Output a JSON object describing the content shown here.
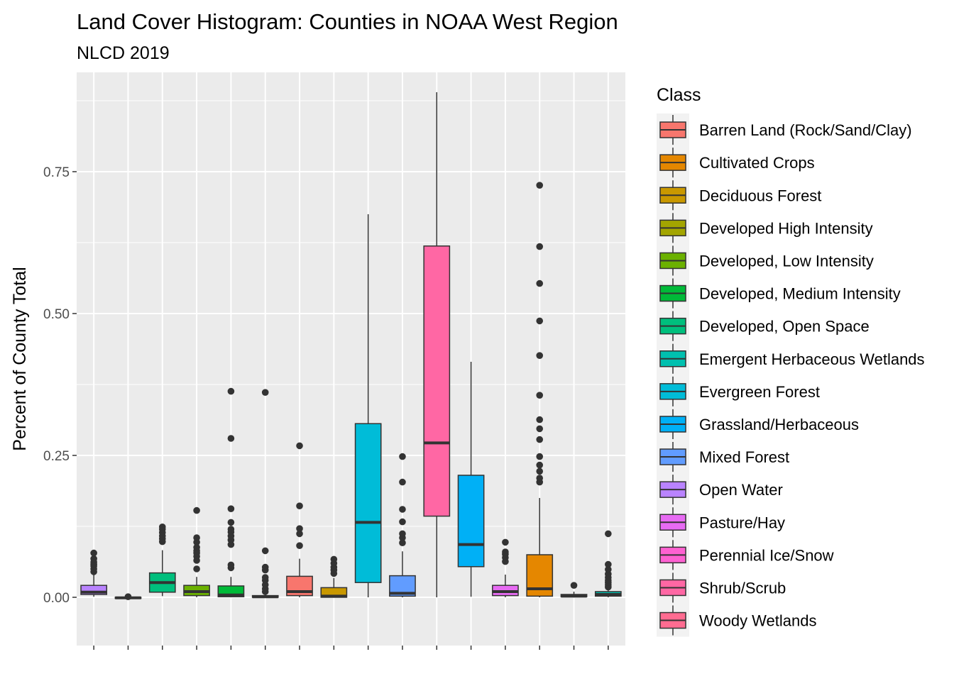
{
  "chart_data": {
    "type": "boxplot",
    "title": "Land Cover Histogram: Counties in NOAA West Region",
    "subtitle": "NLCD 2019",
    "xlabel": "",
    "ylabel": "Percent of County Total",
    "ylim": [
      -0.085,
      0.925
    ],
    "yticks": [
      0.0,
      0.25,
      0.5,
      0.75
    ],
    "ytick_labels": [
      "0.00",
      "0.25",
      "0.50",
      "0.75"
    ],
    "grid": true,
    "legend_title": "Class",
    "legend_position": "right",
    "legend_order": [
      "Barren Land (Rock/Sand/Clay)",
      "Cultivated Crops",
      "Deciduous Forest",
      "Developed High Intensity",
      "Developed, Low Intensity",
      "Developed, Medium Intensity",
      "Developed, Open Space",
      "Emergent Herbaceous Wetlands",
      "Evergreen Forest",
      "Grassland/Herbaceous",
      "Mixed Forest",
      "Open Water",
      "Pasture/Hay",
      "Perennial Ice/Snow",
      "Shrub/Scrub",
      "Woody Wetlands"
    ],
    "colors": {
      "Barren Land (Rock/Sand/Clay)": "#F8766D",
      "Cultivated Crops": "#E58700",
      "Deciduous Forest": "#C99800",
      "Developed High Intensity": "#A3A500",
      "Developed, Low Intensity": "#6BB100",
      "Developed, Medium Intensity": "#00BA38",
      "Developed, Open Space": "#00BF7D",
      "Emergent Herbaceous Wetlands": "#00C0AF",
      "Evergreen Forest": "#00BCD8",
      "Grassland/Herbaceous": "#00B0F6",
      "Mixed Forest": "#619CFF",
      "Open Water": "#B983FF",
      "Pasture/Hay": "#E76BF3",
      "Perennial Ice/Snow": "#FD61D1",
      "Shrub/Scrub": "#FF67A4",
      "Woody Wetlands": "#FF6C91"
    },
    "boxes": [
      {
        "class": "Open Water",
        "q1": 0.005,
        "median": 0.009,
        "q3": 0.021,
        "whisker_low": 0.001,
        "whisker_high": 0.04,
        "outliers": [
          0.045,
          0.05,
          0.055,
          0.058,
          0.062,
          0.068,
          0.078
        ]
      },
      {
        "class": "Perennial Ice/Snow",
        "q1": -0.002,
        "median": -0.001,
        "q3": 0.0,
        "whisker_low": -0.003,
        "whisker_high": 0.001,
        "outliers": [
          0.001
        ]
      },
      {
        "class": "Developed, Open Space",
        "q1": 0.009,
        "median": 0.026,
        "q3": 0.043,
        "whisker_low": 0.002,
        "whisker_high": 0.083,
        "outliers": [
          0.098,
          0.103,
          0.108,
          0.114,
          0.12,
          0.124
        ]
      },
      {
        "class": "Developed, Low Intensity",
        "q1": 0.003,
        "median": 0.01,
        "q3": 0.021,
        "whisker_low": 0.0,
        "whisker_high": 0.036,
        "outliers": [
          0.05,
          0.065,
          0.072,
          0.078,
          0.082,
          0.088,
          0.097,
          0.105,
          0.153
        ]
      },
      {
        "class": "Developed, Medium Intensity",
        "q1": 0.001,
        "median": 0.004,
        "q3": 0.02,
        "whisker_low": 0.0,
        "whisker_high": 0.036,
        "outliers": [
          0.052,
          0.057,
          0.093,
          0.101,
          0.108,
          0.115,
          0.12,
          0.132,
          0.156,
          0.28,
          0.363
        ]
      },
      {
        "class": "Developed High Intensity",
        "q1": 0.0,
        "median": 0.001,
        "q3": 0.003,
        "whisker_low": 0.0,
        "whisker_high": 0.007,
        "outliers": [
          0.01,
          0.015,
          0.022,
          0.03,
          0.035,
          0.048,
          0.053,
          0.082,
          0.361
        ]
      },
      {
        "class": "Barren Land (Rock/Sand/Clay)",
        "q1": 0.003,
        "median": 0.01,
        "q3": 0.037,
        "whisker_low": 0.0,
        "whisker_high": 0.068,
        "outliers": [
          0.091,
          0.112,
          0.121,
          0.161,
          0.267
        ]
      },
      {
        "class": "Deciduous Forest",
        "q1": 0.0,
        "median": 0.002,
        "q3": 0.017,
        "whisker_low": 0.0,
        "whisker_high": 0.034,
        "outliers": [
          0.042,
          0.048,
          0.053,
          0.06,
          0.067
        ]
      },
      {
        "class": "Evergreen Forest",
        "q1": 0.026,
        "median": 0.132,
        "q3": 0.306,
        "whisker_low": 0.0,
        "whisker_high": 0.675,
        "outliers": []
      },
      {
        "class": "Mixed Forest",
        "q1": 0.002,
        "median": 0.007,
        "q3": 0.038,
        "whisker_low": 0.0,
        "whisker_high": 0.081,
        "outliers": [
          0.096,
          0.105,
          0.112,
          0.133,
          0.155,
          0.203,
          0.248
        ]
      },
      {
        "class": "Shrub/Scrub",
        "q1": 0.143,
        "median": 0.272,
        "q3": 0.619,
        "whisker_low": 0.0,
        "whisker_high": 0.89,
        "outliers": []
      },
      {
        "class": "Grassland/Herbaceous",
        "q1": 0.054,
        "median": 0.093,
        "q3": 0.215,
        "whisker_low": 0.001,
        "whisker_high": 0.415,
        "outliers": []
      },
      {
        "class": "Pasture/Hay",
        "q1": 0.003,
        "median": 0.01,
        "q3": 0.021,
        "whisker_low": 0.0,
        "whisker_high": 0.04,
        "outliers": [
          0.063,
          0.07,
          0.076,
          0.08,
          0.097
        ]
      },
      {
        "class": "Cultivated Crops",
        "q1": 0.002,
        "median": 0.015,
        "q3": 0.075,
        "whisker_low": 0.0,
        "whisker_high": 0.175,
        "outliers": [
          0.203,
          0.21,
          0.222,
          0.233,
          0.248,
          0.278,
          0.297,
          0.313,
          0.356,
          0.426,
          0.487,
          0.553,
          0.618,
          0.726
        ]
      },
      {
        "class": "Woody Wetlands",
        "q1": 0.001,
        "median": 0.002,
        "q3": 0.005,
        "whisker_low": 0.0,
        "whisker_high": 0.01,
        "outliers": [
          0.021
        ]
      },
      {
        "class": "Emergent Herbaceous Wetlands",
        "q1": 0.002,
        "median": 0.005,
        "q3": 0.01,
        "whisker_low": 0.0,
        "whisker_high": 0.014,
        "outliers": [
          0.018,
          0.022,
          0.026,
          0.03,
          0.035,
          0.041,
          0.049,
          0.058,
          0.112
        ]
      }
    ]
  }
}
